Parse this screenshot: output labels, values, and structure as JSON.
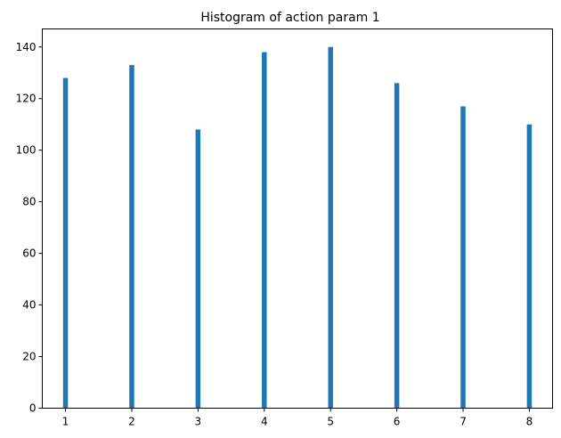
{
  "chart_data": {
    "type": "bar",
    "title": "Histogram of action param 1",
    "xlabel": "",
    "ylabel": "",
    "categories": [
      "1",
      "2",
      "3",
      "4",
      "5",
      "6",
      "7",
      "8"
    ],
    "x": [
      1,
      2,
      3,
      4,
      5,
      6,
      7,
      8
    ],
    "values": [
      128,
      133,
      108,
      138,
      140,
      126,
      117,
      110
    ],
    "xlim": [
      0.65,
      8.35
    ],
    "ylim": [
      0,
      147
    ],
    "xticks": [
      1,
      2,
      3,
      4,
      5,
      6,
      7,
      8
    ],
    "yticks": [
      0,
      20,
      40,
      60,
      80,
      100,
      120,
      140
    ],
    "grid": false,
    "bar_color": "#1f77b4"
  }
}
